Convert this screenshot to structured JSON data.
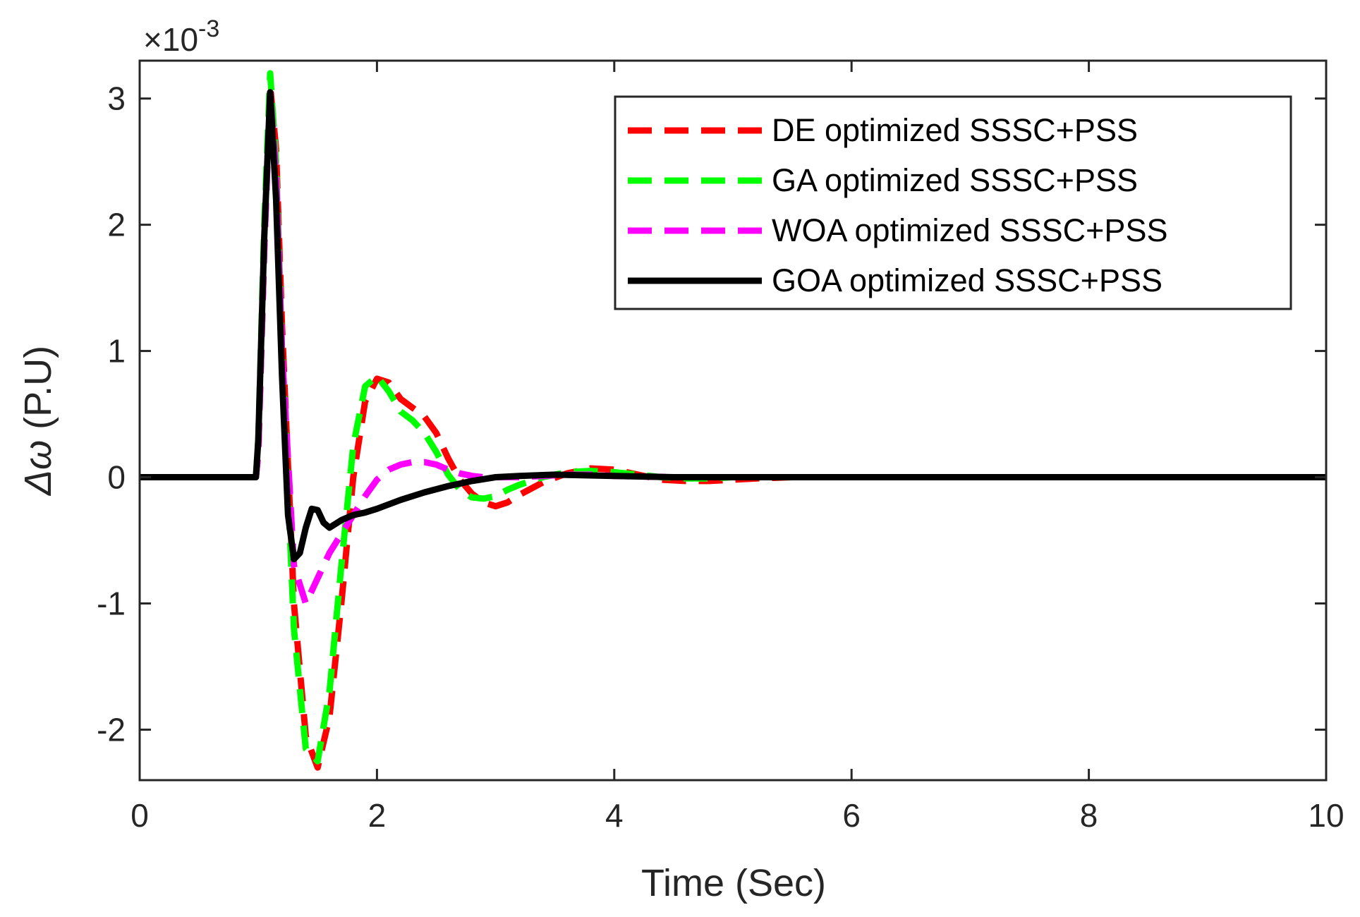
{
  "chart_data": {
    "type": "line",
    "title": "",
    "xlabel": "Time (Sec)",
    "ylabel_symbol": "Δω",
    "ylabel_unit": "(P.U)",
    "exponent_label": "×10",
    "exponent_power": "-3",
    "xlim": [
      0,
      10
    ],
    "ylim": [
      -2.4,
      3.3
    ],
    "xticks": [
      0,
      2,
      4,
      6,
      8,
      10
    ],
    "xtick_labels": [
      "0",
      "2",
      "4",
      "6",
      "8",
      "10"
    ],
    "yticks": [
      -2,
      -1,
      0,
      1,
      2,
      3
    ],
    "ytick_labels": [
      "-2",
      "-1",
      "0",
      "1",
      "2",
      "3"
    ],
    "grid": false,
    "legend_position": "top-right",
    "series": [
      {
        "name": "DE optimized SSSC+PSS",
        "color": "#ff0000",
        "style": "dashed",
        "x": [
          0,
          0.98,
          1.0,
          1.05,
          1.1,
          1.15,
          1.2,
          1.3,
          1.4,
          1.5,
          1.6,
          1.7,
          1.8,
          1.9,
          2.0,
          2.1,
          2.2,
          2.3,
          2.4,
          2.5,
          2.6,
          2.7,
          2.8,
          2.9,
          3.0,
          3.1,
          3.2,
          3.4,
          3.6,
          3.8,
          4.0,
          4.2,
          4.4,
          4.6,
          4.8,
          5.0,
          5.2,
          5.5,
          6.0,
          7.0,
          8.0,
          10.0
        ],
        "y": [
          0,
          0,
          0.2,
          1.8,
          3.1,
          2.6,
          1.2,
          -1.0,
          -2.05,
          -2.3,
          -1.9,
          -1.0,
          0.0,
          0.6,
          0.78,
          0.75,
          0.62,
          0.55,
          0.48,
          0.35,
          0.15,
          -0.02,
          -0.13,
          -0.2,
          -0.23,
          -0.2,
          -0.14,
          -0.04,
          0.03,
          0.07,
          0.06,
          0.02,
          -0.02,
          -0.03,
          -0.03,
          -0.02,
          -0.01,
          0.0,
          0.0,
          0.0,
          0.0,
          0.0
        ]
      },
      {
        "name": "GA optimized SSSC+PSS",
        "color": "#00ff00",
        "style": "dashed",
        "x": [
          0,
          0.98,
          1.0,
          1.05,
          1.1,
          1.15,
          1.2,
          1.3,
          1.4,
          1.5,
          1.6,
          1.7,
          1.8,
          1.9,
          2.0,
          2.1,
          2.2,
          2.3,
          2.4,
          2.5,
          2.6,
          2.7,
          2.8,
          2.9,
          3.0,
          3.1,
          3.2,
          3.4,
          3.6,
          3.8,
          4.0,
          4.2,
          4.4,
          4.6,
          4.8,
          5.0,
          5.5,
          6.0,
          7.0,
          8.0,
          10.0
        ],
        "y": [
          0,
          0,
          0.3,
          2.0,
          3.2,
          2.5,
          1.0,
          -1.2,
          -2.15,
          -2.25,
          -1.7,
          -0.7,
          0.25,
          0.72,
          0.8,
          0.68,
          0.52,
          0.45,
          0.35,
          0.2,
          0.02,
          -0.1,
          -0.16,
          -0.17,
          -0.15,
          -0.1,
          -0.06,
          0.0,
          0.04,
          0.05,
          0.04,
          0.02,
          0.0,
          -0.01,
          -0.01,
          0.0,
          0.0,
          0.0,
          0.0,
          0.0,
          0.0
        ]
      },
      {
        "name": "WOA optimized SSSC+PSS",
        "color": "#ff00ff",
        "style": "dashed",
        "x": [
          0,
          0.98,
          1.0,
          1.05,
          1.1,
          1.15,
          1.2,
          1.3,
          1.4,
          1.5,
          1.6,
          1.7,
          1.8,
          1.9,
          2.0,
          2.1,
          2.2,
          2.3,
          2.4,
          2.5,
          2.6,
          2.7,
          2.8,
          2.9,
          3.0,
          3.2,
          3.4,
          3.6,
          3.8,
          4.0,
          4.5,
          5.0,
          6.0,
          7.0,
          8.0,
          10.0
        ],
        "y": [
          0,
          0,
          0.2,
          1.8,
          3.05,
          2.4,
          1.0,
          -0.7,
          -1.0,
          -0.8,
          -0.6,
          -0.45,
          -0.3,
          -0.15,
          -0.02,
          0.06,
          0.1,
          0.12,
          0.12,
          0.1,
          0.06,
          0.03,
          0.01,
          0.0,
          0.0,
          0.0,
          0.01,
          0.02,
          0.02,
          0.01,
          0.0,
          0.0,
          0.0,
          0.0,
          0.0,
          0.0
        ]
      },
      {
        "name": "GOA optimized SSSC+PSS",
        "color": "#000000",
        "style": "solid",
        "x": [
          0,
          0.98,
          1.0,
          1.05,
          1.1,
          1.15,
          1.2,
          1.25,
          1.3,
          1.35,
          1.4,
          1.45,
          1.5,
          1.55,
          1.6,
          1.7,
          1.8,
          1.9,
          2.0,
          2.2,
          2.4,
          2.6,
          2.8,
          3.0,
          3.2,
          3.5,
          4.0,
          4.5,
          5.0,
          6.0,
          7.0,
          8.0,
          10.0
        ],
        "y": [
          0,
          0,
          0.3,
          1.9,
          3.05,
          2.2,
          0.8,
          -0.3,
          -0.65,
          -0.6,
          -0.4,
          -0.25,
          -0.26,
          -0.36,
          -0.4,
          -0.34,
          -0.3,
          -0.28,
          -0.25,
          -0.18,
          -0.12,
          -0.07,
          -0.03,
          0.0,
          0.01,
          0.02,
          0.01,
          0.0,
          0.0,
          0.0,
          0.0,
          0.0,
          0.0
        ]
      }
    ]
  }
}
